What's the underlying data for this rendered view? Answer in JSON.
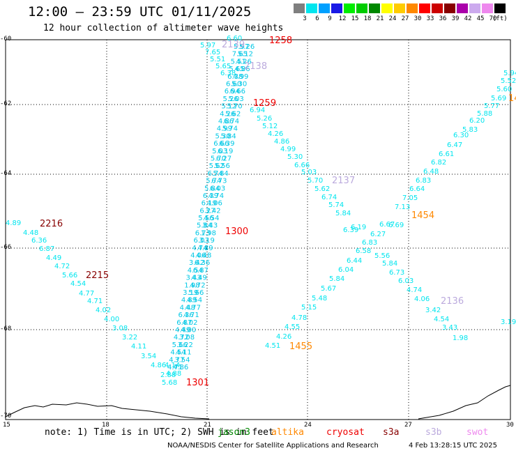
{
  "title": "12:00 – 23:59 UTC 01/11/2025",
  "subtitle": "12 hour collection of altimeter wave heights",
  "legend": {
    "unit": "(ft)",
    "bins": [
      {
        "label": "3",
        "color": "#7f7f7f"
      },
      {
        "label": "6",
        "color": "#00e5ee"
      },
      {
        "label": "9",
        "color": "#00a0ff"
      },
      {
        "label": "12",
        "color": "#1a1ae6"
      },
      {
        "label": "15",
        "color": "#00ee00"
      },
      {
        "label": "18",
        "color": "#00cc00"
      },
      {
        "label": "21",
        "color": "#008800"
      },
      {
        "label": "24",
        "color": "#ffff00"
      },
      {
        "label": "27",
        "color": "#ffcc00"
      },
      {
        "label": "30",
        "color": "#ff8800"
      },
      {
        "label": "33",
        "color": "#ff0000"
      },
      {
        "label": "36",
        "color": "#cc0000"
      },
      {
        "label": "39",
        "color": "#880000"
      },
      {
        "label": "42",
        "color": "#aa00aa"
      },
      {
        "label": "45",
        "color": "#ccaaee"
      },
      {
        "label": "70",
        "color": "#ee88ee"
      },
      {
        "label": "",
        "color": "#000000"
      }
    ]
  },
  "axes": {
    "lat_labels": [
      "-60",
      "-62",
      "-64",
      "-66",
      "-68",
      "-70"
    ],
    "lon_labels": [
      "15",
      "18",
      "21",
      "24",
      "27",
      "30"
    ]
  },
  "note": "note: 1) Time is in UTC; 2) SWH is in feet",
  "satellites": [
    {
      "name": "jason3",
      "color": "#008800"
    },
    {
      "name": "altika",
      "color": "#ff8800"
    },
    {
      "name": "cryosat",
      "color": "#ee0000"
    },
    {
      "name": "s3a",
      "color": "#880000"
    },
    {
      "name": "s3b",
      "color": "#bbaadd"
    },
    {
      "name": "swot",
      "color": "#ee88ee"
    }
  ],
  "credit": "NOAA/NESDIS Center for Satellite Applications and Research",
  "timestamp": "4 Feb 13:28:15 UTC 2025",
  "pass_labels": [
    {
      "text": "1258",
      "color": "#ee0000"
    },
    {
      "text": "1259",
      "color": "#ee0000"
    },
    {
      "text": "1300",
      "color": "#ee0000"
    },
    {
      "text": "1301",
      "color": "#ee0000"
    },
    {
      "text": "2139",
      "color": "#bbaadd"
    },
    {
      "text": "2138",
      "color": "#bbaadd"
    },
    {
      "text": "2137",
      "color": "#bbaadd"
    },
    {
      "text": "2136",
      "color": "#bbaadd"
    },
    {
      "text": "2216",
      "color": "#880000"
    },
    {
      "text": "2215",
      "color": "#880000"
    },
    {
      "text": "1454",
      "color": "#ff8800"
    },
    {
      "text": "1455",
      "color": "#ff8800"
    },
    {
      "text": "14",
      "color": "#ff8800"
    }
  ],
  "swh_values": [
    "5.97",
    "7.65",
    "5.51",
    "5.65",
    "6.38",
    "6.60",
    "6.94",
    "5.26",
    "5.12",
    "4.26",
    "4.86",
    "4.99",
    "5.30",
    "6.66",
    "5.03",
    "5.70",
    "5.62",
    "6.74",
    "5.74",
    "5.84",
    "6.39",
    "6.19",
    "6.27",
    "5.56",
    "5.84",
    "6.73",
    "6.03",
    "4.74",
    "4.06",
    "3.42",
    "4.54",
    "3.43",
    "1.98",
    "3.19",
    "4.89",
    "4.48",
    "6.36",
    "6.87",
    "4.49",
    "4.72",
    "5.66",
    "4.54",
    "4.77",
    "4.71",
    "4.02",
    "4.00",
    "3.08",
    "3.22",
    "4.11",
    "3.54",
    "4.86",
    "4.14",
    "4.88",
    "5.68",
    "2.88",
    "4.51",
    "4.26",
    "4.55",
    "4.78",
    "5.15",
    "5.48",
    "5.67",
    "5.84",
    "6.04",
    "6.44",
    "6.58",
    "6.83",
    "6.67",
    "6.69",
    "7.13",
    "7.05",
    "6.64",
    "6.83",
    "6.48",
    "6.82",
    "6.61",
    "6.47",
    "6.30",
    "5.83",
    "6.20",
    "5.88",
    "5.77",
    "5.69",
    "5.60",
    "5.52",
    "5.94"
  ]
}
